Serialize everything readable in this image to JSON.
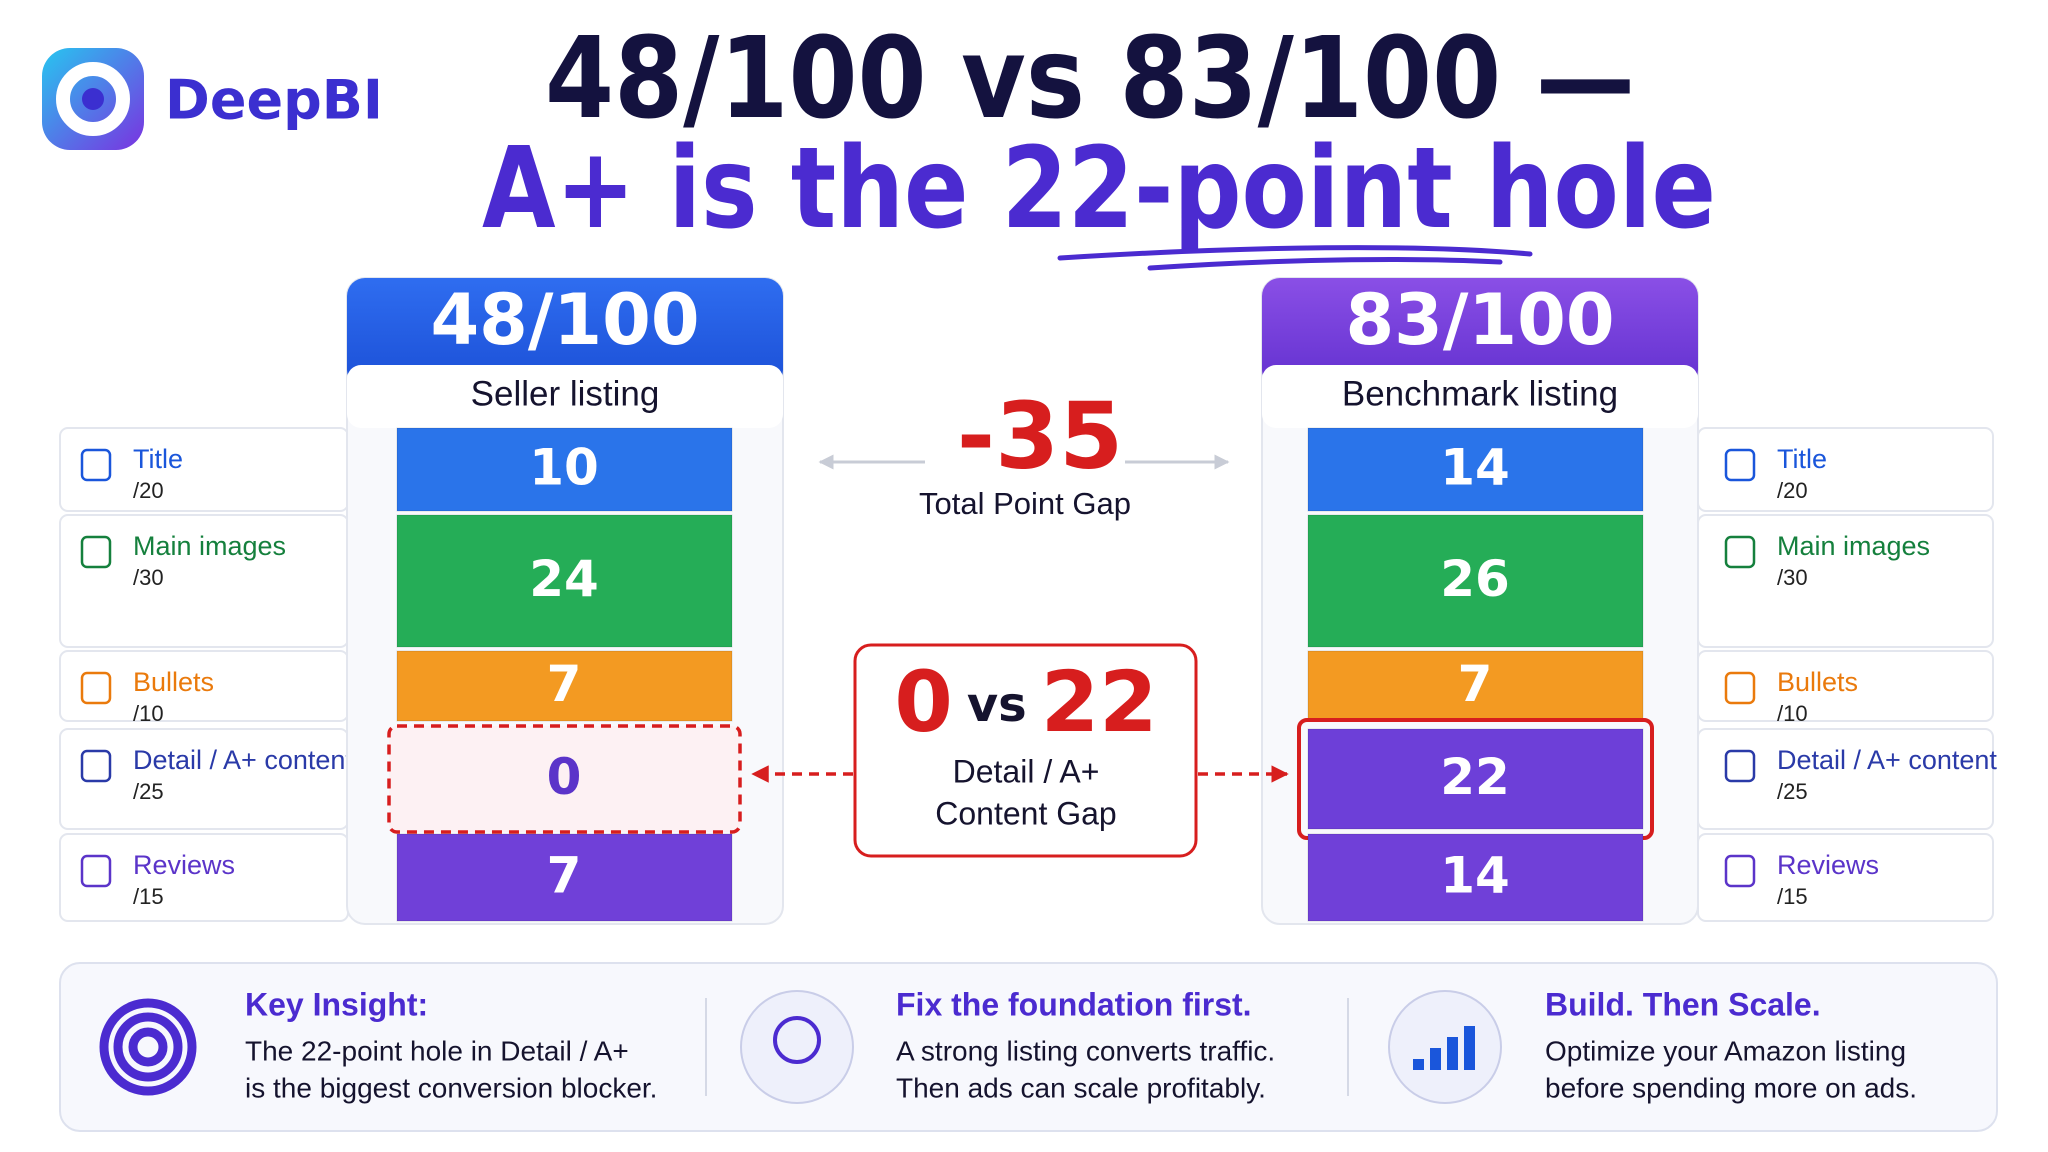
{
  "brand": "DeepBI",
  "title": {
    "line1": "48/100 vs 83/100 —",
    "line2": "A+ is the 22-point hole"
  },
  "criteria": [
    {
      "name": "Title",
      "max": "/20"
    },
    {
      "name": "Main images",
      "max": "/30"
    },
    {
      "name": "Bullets",
      "max": "/10"
    },
    {
      "name": "Detail / A+ content",
      "max": "/25"
    },
    {
      "name": "Reviews",
      "max": "/15"
    }
  ],
  "seller": {
    "score": "48/100",
    "label": "Seller listing",
    "values": [
      "10",
      "24",
      "7",
      "0",
      "7"
    ]
  },
  "benchmark": {
    "score": "83/100",
    "label": "Benchmark listing",
    "values": [
      "14",
      "26",
      "7",
      "22",
      "14"
    ]
  },
  "total_gap": {
    "value": "-35",
    "label": "Total Point Gap"
  },
  "detail_gap": {
    "left": "0",
    "vs": "vs",
    "right": "22",
    "label_lines": [
      "Detail / A+",
      "Content Gap"
    ]
  },
  "insights": [
    {
      "title": "Key Insight:",
      "lines": [
        "The 22-point hole in Detail / A+",
        "is the biggest conversion blocker."
      ]
    },
    {
      "title": "Fix the foundation first.",
      "lines": [
        "A strong listing converts traffic.",
        "Then ads can scale profitably."
      ]
    },
    {
      "title": "Build. Then Scale.",
      "lines": [
        "Optimize your Amazon listing",
        "before spending more on ads."
      ]
    }
  ]
}
